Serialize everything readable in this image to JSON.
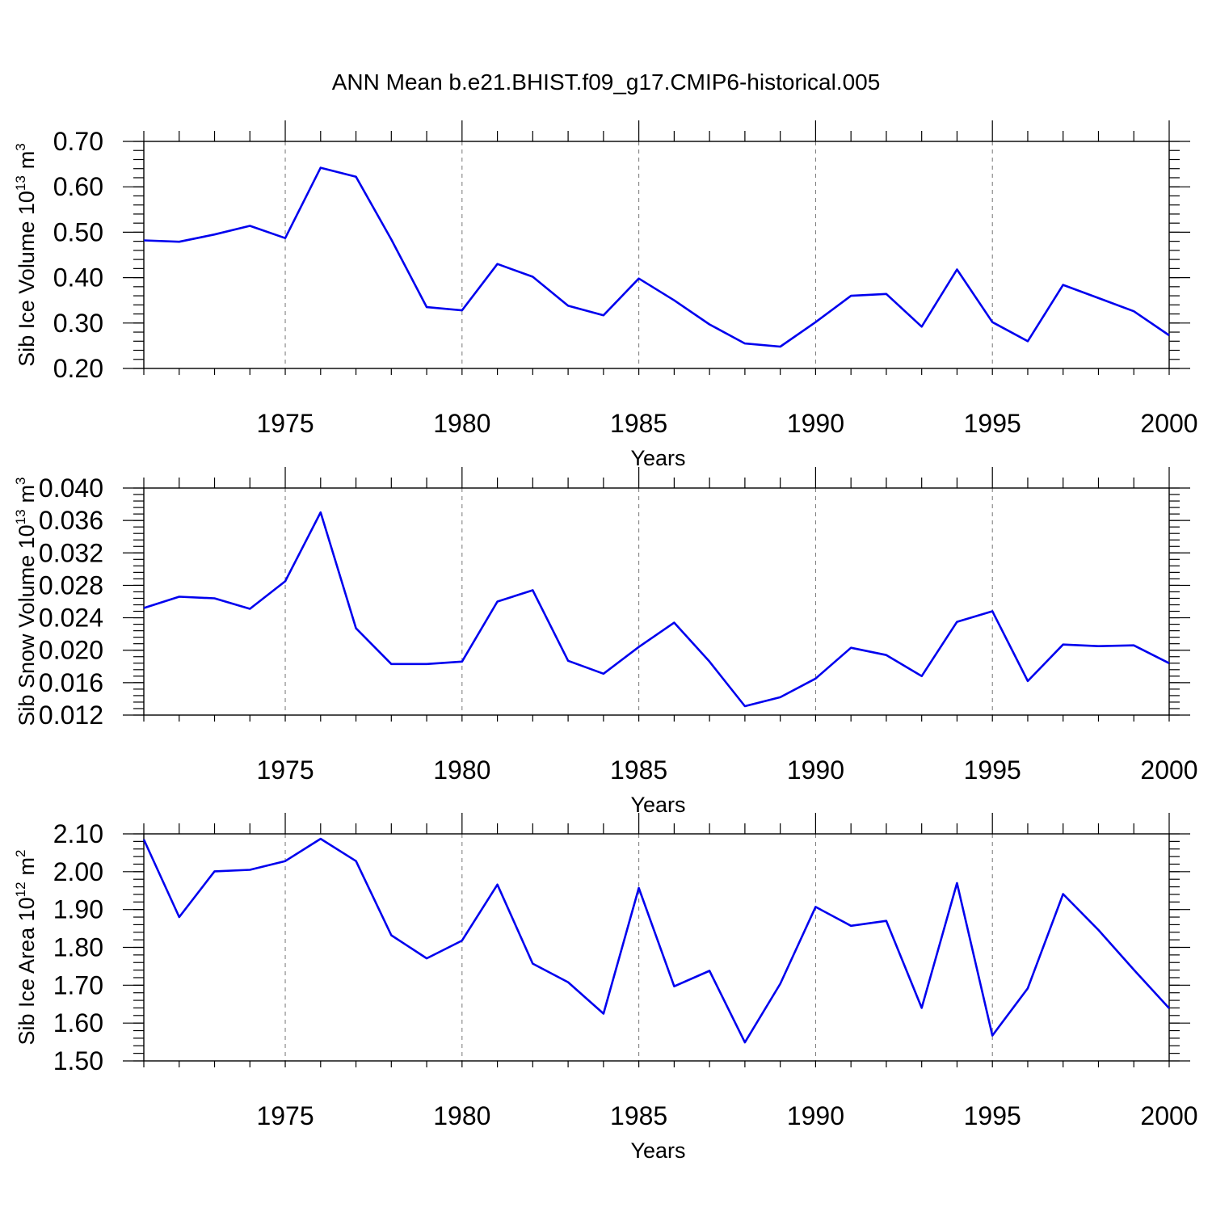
{
  "figure": {
    "title": "ANN Mean b.e21.BHIST.f09_g17.CMIP6-historical.005",
    "line_color": "#0000ee"
  },
  "chart_data": [
    {
      "type": "line",
      "ylabel": "Sib Ice Volume 10",
      "ylabel_exp": "13",
      "ylabel_unit": "m",
      "ylabel_unit_exp": "3",
      "xlabel": "Years",
      "xlim": [
        1971,
        2000
      ],
      "ylim": [
        0.2,
        0.7
      ],
      "yticks": [
        0.2,
        0.3,
        0.4,
        0.5,
        0.6,
        0.7
      ],
      "ytick_labels": [
        "0.20",
        "0.30",
        "0.40",
        "0.50",
        "0.60",
        "0.70"
      ],
      "yminor_step": 0.02,
      "xticks": [
        1975,
        1980,
        1985,
        1990,
        1995,
        2000
      ],
      "xtick_labels": [
        "1975",
        "1980",
        "1985",
        "1990",
        "1995",
        "2000"
      ],
      "grid": "vertical dashed at major x ticks",
      "x": [
        1971,
        1972,
        1973,
        1974,
        1975,
        1976,
        1977,
        1978,
        1979,
        1980,
        1981,
        1982,
        1983,
        1984,
        1985,
        1986,
        1987,
        1988,
        1989,
        1990,
        1991,
        1992,
        1993,
        1994,
        1995,
        1996,
        1997,
        1998,
        1999,
        2000
      ],
      "series": [
        {
          "values": [
            0.482,
            0.479,
            0.495,
            0.514,
            0.487,
            0.642,
            0.622,
            0.484,
            0.335,
            0.328,
            0.43,
            0.402,
            0.338,
            0.317,
            0.398,
            0.35,
            0.297,
            0.255,
            0.248,
            0.302,
            0.36,
            0.364,
            0.292,
            0.418,
            0.302,
            0.26,
            0.384,
            0.355,
            0.326,
            0.273
          ]
        }
      ]
    },
    {
      "type": "line",
      "ylabel": "Sib Snow Volume 10",
      "ylabel_exp": "13",
      "ylabel_unit": "m",
      "ylabel_unit_exp": "3",
      "xlabel": "Years",
      "xlim": [
        1971,
        2000
      ],
      "ylim": [
        0.012,
        0.04
      ],
      "yticks": [
        0.012,
        0.016,
        0.02,
        0.024,
        0.028,
        0.032,
        0.036,
        0.04
      ],
      "ytick_labels": [
        "0.012",
        "0.016",
        "0.020",
        "0.024",
        "0.028",
        "0.032",
        "0.036",
        "0.040"
      ],
      "yminor_step": 0.0008,
      "xticks": [
        1975,
        1980,
        1985,
        1990,
        1995,
        2000
      ],
      "xtick_labels": [
        "1975",
        "1980",
        "1985",
        "1990",
        "1995",
        "2000"
      ],
      "grid": "vertical dashed at major x ticks",
      "x": [
        1971,
        1972,
        1973,
        1974,
        1975,
        1976,
        1977,
        1978,
        1979,
        1980,
        1981,
        1982,
        1983,
        1984,
        1985,
        1986,
        1987,
        1988,
        1989,
        1990,
        1991,
        1992,
        1993,
        1994,
        1995,
        1996,
        1997,
        1998,
        1999,
        2000
      ],
      "series": [
        {
          "values": [
            0.0252,
            0.0266,
            0.0264,
            0.0251,
            0.0285,
            0.037,
            0.0227,
            0.0183,
            0.0183,
            0.0186,
            0.026,
            0.0274,
            0.0187,
            0.0171,
            0.0204,
            0.0234,
            0.0186,
            0.0131,
            0.0142,
            0.0165,
            0.0203,
            0.0194,
            0.0168,
            0.0235,
            0.0248,
            0.0162,
            0.0207,
            0.0205,
            0.0206,
            0.0184
          ]
        }
      ]
    },
    {
      "type": "line",
      "ylabel": "Sib Ice Area 10",
      "ylabel_exp": "12",
      "ylabel_unit": "m",
      "ylabel_unit_exp": "2",
      "xlabel": "Years",
      "xlim": [
        1971,
        2000
      ],
      "ylim": [
        1.5,
        2.1
      ],
      "yticks": [
        1.5,
        1.6,
        1.7,
        1.8,
        1.9,
        2.0,
        2.1
      ],
      "ytick_labels": [
        "1.50",
        "1.60",
        "1.70",
        "1.80",
        "1.90",
        "2.00",
        "2.10"
      ],
      "yminor_step": 0.02,
      "xticks": [
        1975,
        1980,
        1985,
        1990,
        1995,
        2000
      ],
      "xtick_labels": [
        "1975",
        "1980",
        "1985",
        "1990",
        "1995",
        "2000"
      ],
      "grid": "vertical dashed at major x ticks",
      "x": [
        1971,
        1972,
        1973,
        1974,
        1975,
        1976,
        1977,
        1978,
        1979,
        1980,
        1981,
        1982,
        1983,
        1984,
        1985,
        1986,
        1987,
        1988,
        1989,
        1990,
        1991,
        1992,
        1993,
        1994,
        1995,
        1996,
        1997,
        1998,
        1999,
        2000
      ],
      "series": [
        {
          "values": [
            2.085,
            1.88,
            2.001,
            2.005,
            2.028,
            2.087,
            2.028,
            1.832,
            1.771,
            1.818,
            1.966,
            1.757,
            1.708,
            1.625,
            1.957,
            1.697,
            1.738,
            1.549,
            1.704,
            1.907,
            1.857,
            1.87,
            1.64,
            1.97,
            1.567,
            1.692,
            1.941,
            1.846,
            1.741,
            1.639
          ]
        }
      ]
    }
  ]
}
